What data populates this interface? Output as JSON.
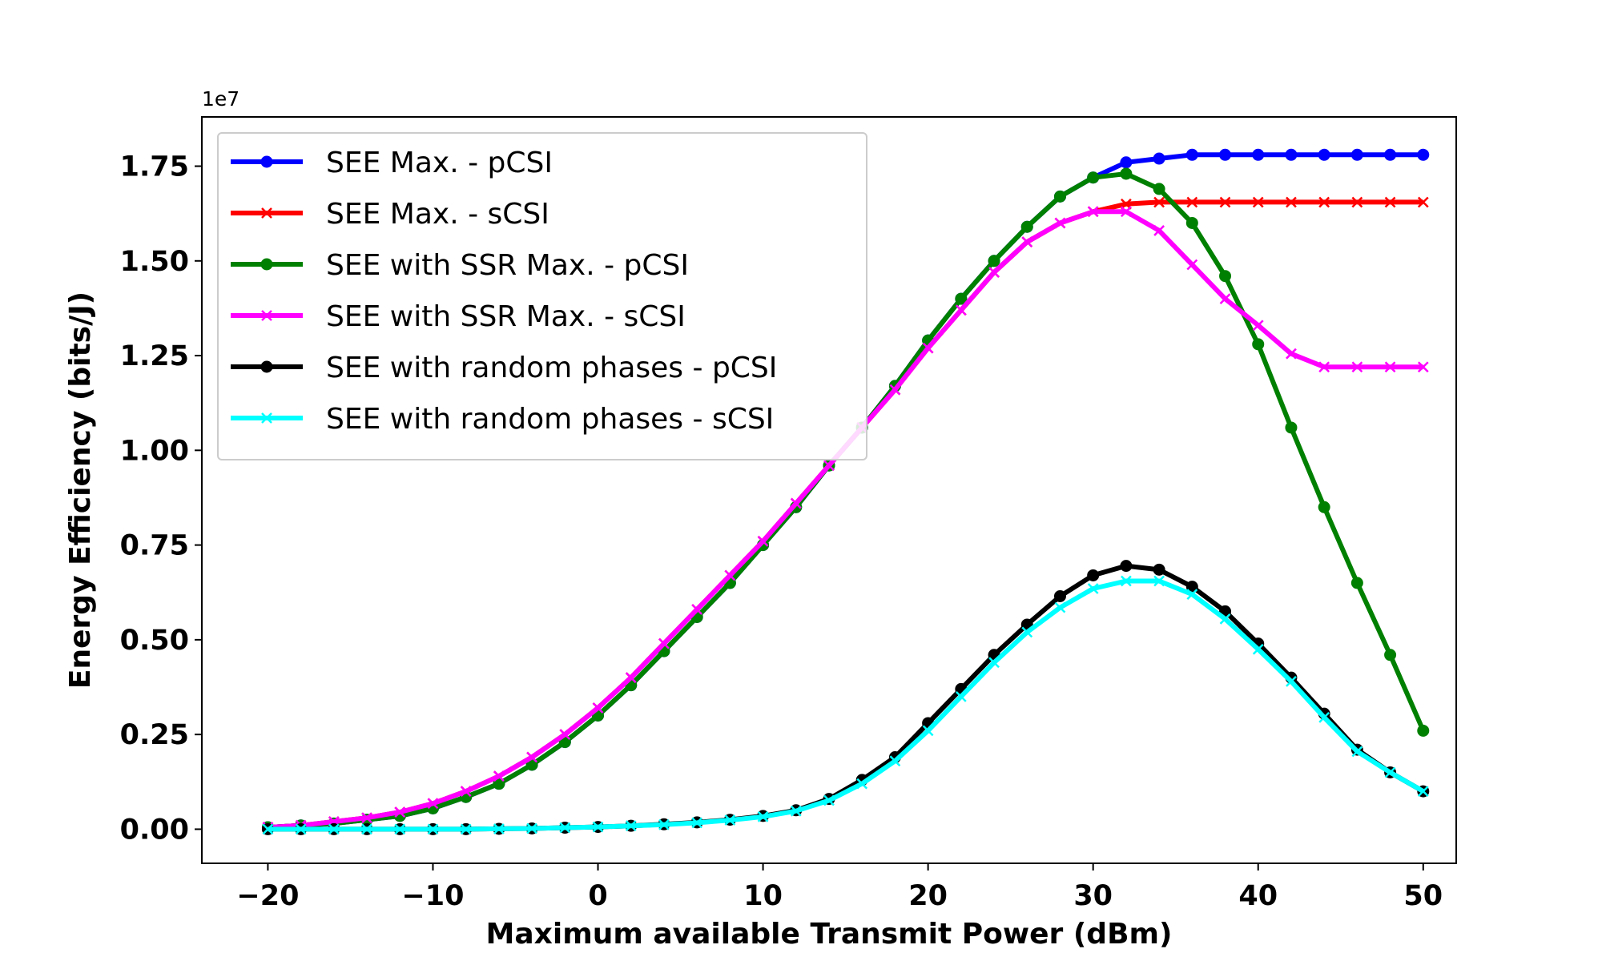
{
  "chart_data": {
    "type": "line",
    "xlabel": "Maximum available Transmit Power (dBm)",
    "ylabel": "Energy Efficiency (bits/J)",
    "y_offset_label": "1e7",
    "xlim": [
      -24,
      52
    ],
    "ylim": [
      -0.9,
      18.8
    ],
    "y_unit_scale": 10000000,
    "xticks": [
      -20,
      -10,
      0,
      10,
      20,
      30,
      40,
      50
    ],
    "xtick_labels": [
      "−20",
      "−10",
      "0",
      "10",
      "20",
      "30",
      "40",
      "50"
    ],
    "yticks": [
      0,
      2.5,
      5,
      7.5,
      10,
      12.5,
      15,
      17.5
    ],
    "ytick_labels": [
      "0.00",
      "0.25",
      "0.50",
      "0.75",
      "1.00",
      "1.25",
      "1.50",
      "1.75"
    ],
    "legend_position": "top-left",
    "x": [
      -20,
      -18,
      -16,
      -14,
      -12,
      -10,
      -8,
      -6,
      -4,
      -2,
      0,
      2,
      4,
      6,
      8,
      10,
      12,
      14,
      16,
      18,
      20,
      22,
      24,
      26,
      28,
      30,
      32,
      34,
      36,
      38,
      40,
      42,
      44,
      46,
      48,
      50
    ],
    "series": [
      {
        "name": "SEE Max. - pCSI",
        "color": "#0000ff",
        "marker": "circle",
        "values": [
          0.05,
          0.1,
          0.15,
          0.25,
          0.35,
          0.55,
          0.85,
          1.2,
          1.7,
          2.3,
          3.0,
          3.8,
          4.7,
          5.6,
          6.5,
          7.5,
          8.5,
          9.6,
          10.6,
          11.7,
          12.9,
          14.0,
          15.0,
          15.9,
          16.7,
          17.2,
          17.6,
          17.7,
          17.8,
          17.8,
          17.8,
          17.8,
          17.8,
          17.8,
          17.8,
          17.8
        ]
      },
      {
        "name": "SEE Max. - sCSI",
        "color": "#ff0000",
        "marker": "x",
        "values": [
          0.05,
          0.1,
          0.2,
          0.3,
          0.45,
          0.68,
          1.0,
          1.4,
          1.9,
          2.5,
          3.2,
          4.0,
          4.9,
          5.8,
          6.7,
          7.6,
          8.6,
          9.6,
          10.6,
          11.6,
          12.7,
          13.7,
          14.7,
          15.5,
          16.0,
          16.3,
          16.5,
          16.55,
          16.55,
          16.55,
          16.55,
          16.55,
          16.55,
          16.55,
          16.55,
          16.55
        ]
      },
      {
        "name": "SEE with SSR Max. - pCSI",
        "color": "#008000",
        "marker": "circle",
        "values": [
          0.05,
          0.1,
          0.15,
          0.25,
          0.35,
          0.55,
          0.85,
          1.2,
          1.7,
          2.3,
          3.0,
          3.8,
          4.7,
          5.6,
          6.5,
          7.5,
          8.5,
          9.6,
          10.6,
          11.7,
          12.9,
          14.0,
          15.0,
          15.9,
          16.7,
          17.2,
          17.3,
          16.9,
          16.0,
          14.6,
          12.8,
          10.6,
          8.5,
          6.5,
          4.6,
          2.6
        ]
      },
      {
        "name": "SEE with SSR Max. - sCSI",
        "color": "#ff00ff",
        "marker": "x",
        "values": [
          0.05,
          0.1,
          0.2,
          0.3,
          0.45,
          0.68,
          1.0,
          1.4,
          1.9,
          2.5,
          3.2,
          4.0,
          4.9,
          5.8,
          6.7,
          7.6,
          8.6,
          9.6,
          10.6,
          11.6,
          12.7,
          13.7,
          14.7,
          15.5,
          16.0,
          16.3,
          16.3,
          15.8,
          14.9,
          14.0,
          13.3,
          12.55,
          12.2,
          12.2,
          12.2,
          12.2
        ]
      },
      {
        "name": "SEE with random phases - pCSI",
        "color": "#000000",
        "marker": "circle",
        "values": [
          0,
          0,
          0,
          0,
          0,
          0,
          0,
          0.01,
          0.02,
          0.04,
          0.06,
          0.09,
          0.13,
          0.18,
          0.25,
          0.35,
          0.5,
          0.8,
          1.3,
          1.9,
          2.8,
          3.7,
          4.6,
          5.4,
          6.15,
          6.7,
          6.95,
          6.85,
          6.4,
          5.75,
          4.9,
          4.0,
          3.05,
          2.1,
          1.5,
          1.0
        ]
      },
      {
        "name": "SEE with random phases - sCSI",
        "color": "#00ffff",
        "marker": "x",
        "values": [
          0,
          0,
          0,
          0,
          0,
          0,
          0,
          0.01,
          0.02,
          0.04,
          0.06,
          0.09,
          0.12,
          0.17,
          0.24,
          0.33,
          0.48,
          0.76,
          1.2,
          1.8,
          2.6,
          3.5,
          4.4,
          5.2,
          5.85,
          6.35,
          6.55,
          6.55,
          6.2,
          5.55,
          4.75,
          3.9,
          2.95,
          2.05,
          1.5,
          1.0
        ]
      }
    ]
  }
}
